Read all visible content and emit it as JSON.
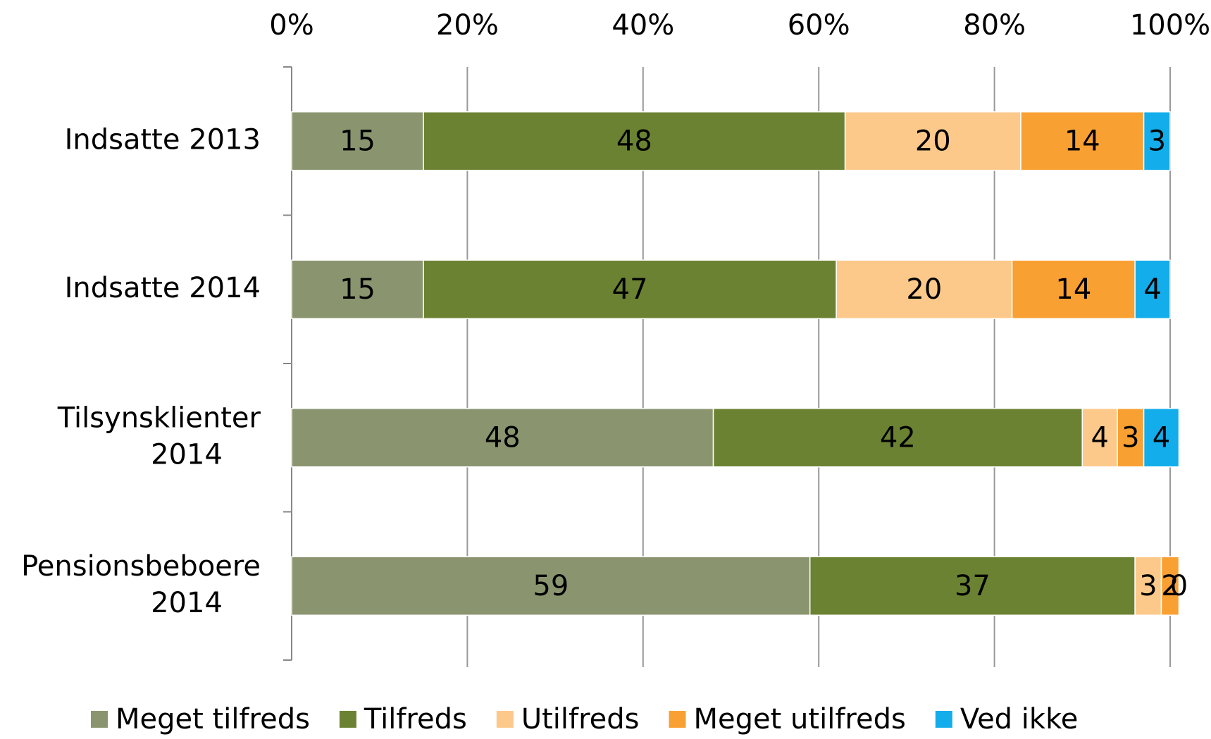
{
  "chart_data": {
    "type": "stacked_bar_horizontal",
    "categories": [
      "Indsatte 2013",
      "Indsatte 2014",
      "Tilsynsklienter 2014",
      "Pensionsbeboere 2014"
    ],
    "series": [
      {
        "name": "Meget tilfreds",
        "color": "#8a9570",
        "values": [
          15,
          15,
          48,
          59
        ]
      },
      {
        "name": "Tilfreds",
        "color": "#6b8232",
        "values": [
          48,
          47,
          42,
          37
        ]
      },
      {
        "name": "Utilfreds",
        "color": "#fcc98a",
        "values": [
          20,
          20,
          4,
          3
        ]
      },
      {
        "name": "Meget utilfreds",
        "color": "#f9a033",
        "values": [
          14,
          14,
          3,
          2
        ]
      },
      {
        "name": "Ved ikke",
        "color": "#12adea",
        "values": [
          3,
          4,
          4,
          0
        ]
      }
    ],
    "xlim": [
      0,
      100
    ],
    "xticks": [
      {
        "value": 0,
        "label": "0%"
      },
      {
        "value": 20,
        "label": "20%"
      },
      {
        "value": 40,
        "label": "40%"
      },
      {
        "value": 60,
        "label": "60%"
      },
      {
        "value": 80,
        "label": "80%"
      },
      {
        "value": 100,
        "label": "100%"
      }
    ],
    "grid": true
  }
}
